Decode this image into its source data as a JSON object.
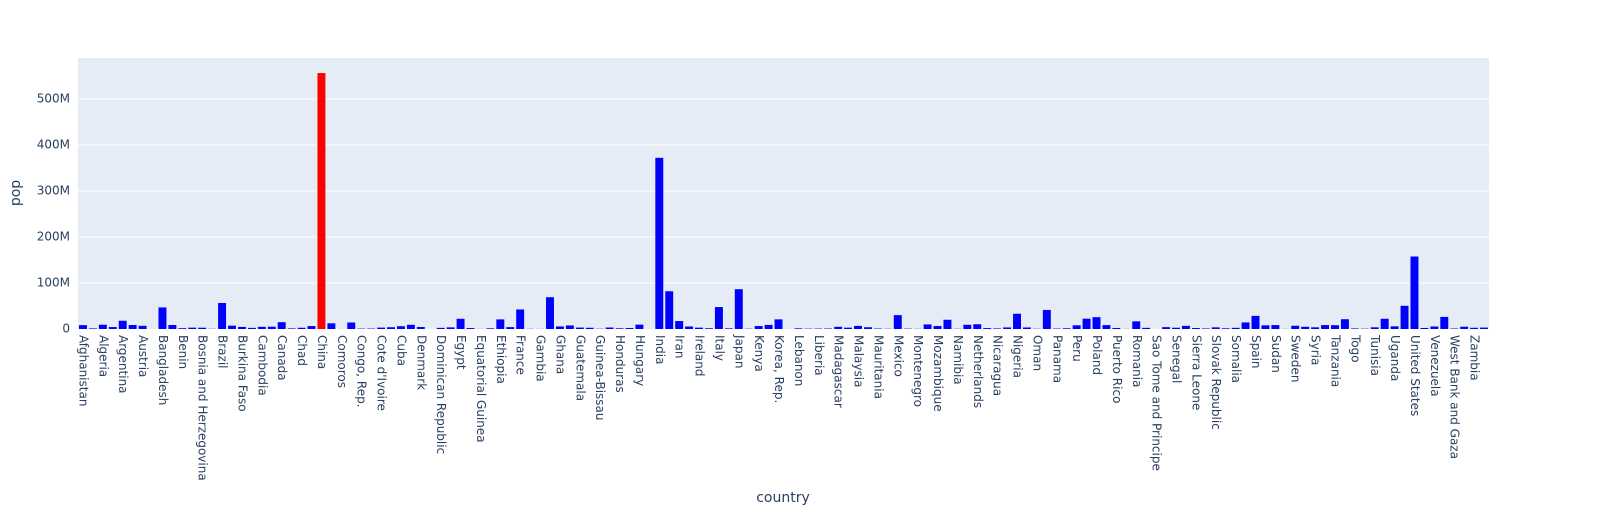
{
  "chart_data": {
    "type": "bar",
    "x_label": "country",
    "y_label": "pop",
    "categories": [
      "Afghanistan",
      null,
      "Algeria",
      null,
      "Argentina",
      null,
      "Austria",
      null,
      "Bangladesh",
      null,
      "Benin",
      null,
      "Bosnia and Herzegovina",
      null,
      "Brazil",
      null,
      "Burkina Faso",
      null,
      "Cambodia",
      null,
      "Canada",
      null,
      "Chad",
      null,
      "China",
      null,
      "Comoros",
      null,
      "Congo, Rep.",
      null,
      "Cote d'Ivoire",
      null,
      "Cuba",
      null,
      "Denmark",
      null,
      "Dominican Republic",
      null,
      "Egypt",
      null,
      "Equatorial Guinea",
      null,
      "Ethiopia",
      null,
      "France",
      null,
      "Gambia",
      null,
      "Ghana",
      null,
      "Guatemala",
      null,
      "Guinea-Bissau",
      null,
      "Honduras",
      null,
      "Hungary",
      null,
      "India",
      null,
      "Iran",
      null,
      "Ireland",
      null,
      "Italy",
      null,
      "Japan",
      null,
      "Kenya",
      null,
      "Korea, Rep.",
      null,
      "Lebanon",
      null,
      "Liberia",
      null,
      "Madagascar",
      null,
      "Malaysia",
      null,
      "Mauritania",
      null,
      "Mexico",
      null,
      "Montenegro",
      null,
      "Mozambique",
      null,
      "Namibia",
      null,
      "Netherlands",
      null,
      "Nicaragua",
      null,
      "Nigeria",
      null,
      "Oman",
      null,
      "Panama",
      null,
      "Peru",
      null,
      "Poland",
      null,
      "Puerto Rico",
      null,
      "Romania",
      null,
      "Sao Tome and Principe",
      null,
      "Senegal",
      null,
      "Sierra Leone",
      null,
      "Slovak Republic",
      null,
      "Somalia",
      null,
      "Spain",
      null,
      "Sudan",
      null,
      "Sweden",
      null,
      "Syria",
      null,
      "Tanzania",
      null,
      "Togo",
      null,
      "Tunisia",
      null,
      "Uganda",
      null,
      "United States",
      null,
      "Venezuela",
      null,
      "West Bank and Gaza",
      null,
      "Zambia",
      null
    ],
    "values": [
      8400000,
      1280000,
      9280000,
      4230000,
      17900000,
      8690000,
      6930000,
      120000,
      46900000,
      8730000,
      1740000,
      2880000,
      2790000,
      440000,
      56600000,
      7270000,
      4470000,
      2450000,
      4690000,
      5010000,
      14800000,
      1290000,
      2680000,
      6380000,
      556300000,
      12350000,
      150000,
      14100000,
      850000,
      930000,
      2980000,
      3880000,
      6000000,
      9130000,
      4330000,
      60000,
      2490000,
      3550000,
      22200000,
      2040000,
      220000,
      1440000,
      20860000,
      4090000,
      42460000,
      420000,
      280000,
      69100000,
      5580000,
      7730000,
      3150000,
      2660000,
      580000,
      3200000,
      1520000,
      2130000,
      9500000,
      150000,
      372000000,
      82050000,
      17270000,
      5440000,
      2950000,
      1620000,
      47670000,
      1430000,
      86460000,
      610000,
      6460000,
      8870000,
      20950000,
      160000,
      1440000,
      750000,
      860000,
      1020000,
      4760000,
      2920000,
      6750000,
      3840000,
      1020000,
      520000,
      30140000,
      800000,
      410000,
      9940000,
      6450000,
      20090000,
      490000,
      9180000,
      10380000,
      1990000,
      1170000,
      3380000,
      33120000,
      3330000,
      510000,
      41350000,
      940000,
      1560000,
      8030000,
      22440000,
      25730000,
      8530000,
      2230000,
      260000,
      16630000,
      2530000,
      60000,
      4010000,
      2760000,
      6860000,
      2140000,
      1130000,
      3560000,
      1490000,
      2530000,
      14260000,
      28550000,
      7980000,
      8500000,
      290000,
      7120000,
      4820000,
      3660000,
      8550000,
      8320000,
      21290000,
      1220000,
      660000,
      3650000,
      22240000,
      5820000,
      50430000,
      157550000,
      2250000,
      5440000,
      26250000,
      1030000,
      4960000,
      2670000,
      3080000
    ],
    "color": "#0000ff",
    "highlight": {
      "index": 24,
      "color": "#ff0000"
    },
    "ylim": [
      0,
      589000000
    ],
    "yticks": [
      0,
      {
        "value": 100000000,
        "label": "100M"
      },
      {
        "value": 200000000,
        "label": "200M"
      },
      {
        "value": 300000000,
        "label": "300M"
      },
      {
        "value": 400000000,
        "label": "400M"
      },
      {
        "value": 500000000,
        "label": "500M"
      }
    ],
    "grid": true
  }
}
